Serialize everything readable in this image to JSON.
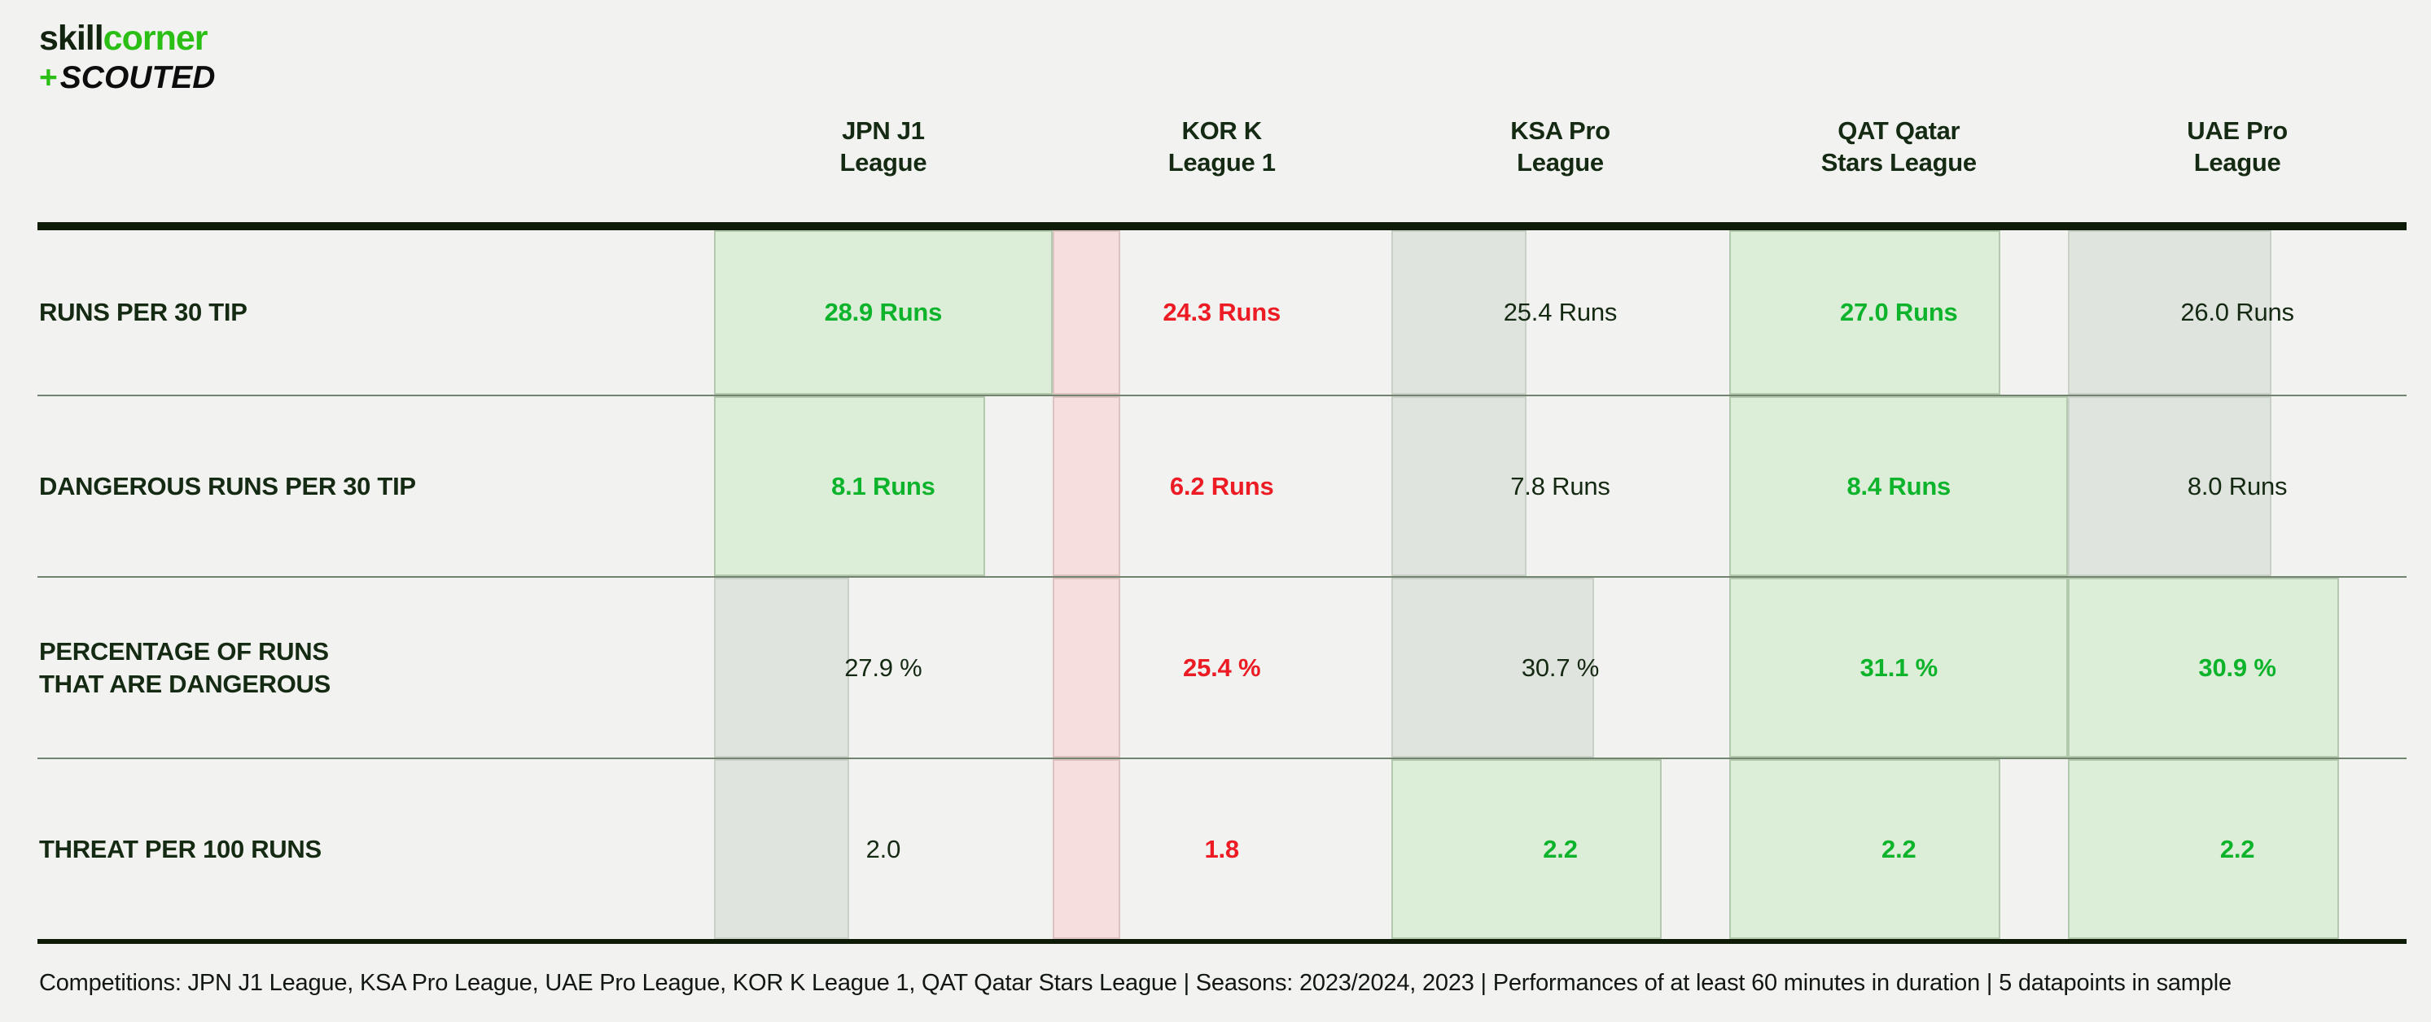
{
  "brand": {
    "skill": "skill",
    "corner": "corner",
    "plus": "+",
    "scouted": "SCOUTED"
  },
  "colors": {
    "background": "#f2f3f1",
    "heavy_line": "#0d1b07",
    "row_separator": "#72836f",
    "green_text": "#0cb32b",
    "red_text": "#ed1c24",
    "dark_text": "#152a12",
    "green_bar_fill": "#dceed8",
    "red_bar_fill": "#f5dedd",
    "neutral_bar_fill": "#dfe4de",
    "brand_green": "#2bbf16"
  },
  "chart_data": {
    "type": "table",
    "legend_position": "none",
    "columns": [
      {
        "lines": [
          "JPN J1",
          "League"
        ],
        "full": "JPN J1 League"
      },
      {
        "lines": [
          "KOR K",
          "League 1"
        ],
        "full": "KOR K League 1"
      },
      {
        "lines": [
          "KSA Pro",
          "League"
        ],
        "full": "KSA Pro League"
      },
      {
        "lines": [
          "QAT Qatar",
          "Stars League"
        ],
        "full": "QAT Qatar Stars League"
      },
      {
        "lines": [
          "UAE Pro",
          "League"
        ],
        "full": "UAE Pro League"
      }
    ],
    "rows": [
      {
        "label_lines": [
          "RUNS PER 30 TIP"
        ],
        "unit": "Runs",
        "values": [
          28.9,
          24.3,
          25.4,
          27.0,
          26.0
        ],
        "display": [
          "28.9 Runs",
          "24.3 Runs",
          "25.4 Runs",
          "27.0 Runs",
          "26.0 Runs"
        ],
        "status": [
          "green",
          "red",
          "neutral",
          "green",
          "neutral"
        ],
        "bar_fraction": [
          1.0,
          0.2,
          0.4,
          0.8,
          0.6
        ]
      },
      {
        "label_lines": [
          "DANGEROUS RUNS PER 30 TIP"
        ],
        "unit": "Runs",
        "values": [
          8.1,
          6.2,
          7.8,
          8.4,
          8.0
        ],
        "display": [
          "8.1 Runs",
          "6.2 Runs",
          "7.8 Runs",
          "8.4 Runs",
          "8.0 Runs"
        ],
        "status": [
          "green",
          "red",
          "neutral",
          "green",
          "neutral"
        ],
        "bar_fraction": [
          0.8,
          0.2,
          0.4,
          1.0,
          0.6
        ]
      },
      {
        "label_lines": [
          "PERCENTAGE OF RUNS",
          "THAT ARE DANGEROUS"
        ],
        "unit": "%",
        "values": [
          27.9,
          25.4,
          30.7,
          31.1,
          30.9
        ],
        "display": [
          "27.9 %",
          "25.4 %",
          "30.7 %",
          "31.1 %",
          "30.9 %"
        ],
        "status": [
          "neutral",
          "red",
          "neutral",
          "green",
          "green"
        ],
        "bar_fraction": [
          0.4,
          0.2,
          0.6,
          1.0,
          0.8
        ]
      },
      {
        "label_lines": [
          "THREAT PER 100 RUNS"
        ],
        "unit": "",
        "values": [
          2.0,
          1.8,
          2.2,
          2.2,
          2.2
        ],
        "display": [
          "2.0",
          "1.8",
          "2.2",
          "2.2",
          "2.2"
        ],
        "status": [
          "neutral",
          "red",
          "green",
          "green",
          "green"
        ],
        "bar_fraction": [
          0.4,
          0.2,
          0.8,
          0.8,
          0.8
        ]
      }
    ]
  },
  "footer": {
    "text": "Competitions: JPN J1 League, KSA Pro League, UAE Pro League, KOR K League 1, QAT Qatar Stars League | Seasons: 2023/2024, 2023 | Performances of at least 60 minutes in duration | 5 datapoints in sample"
  }
}
